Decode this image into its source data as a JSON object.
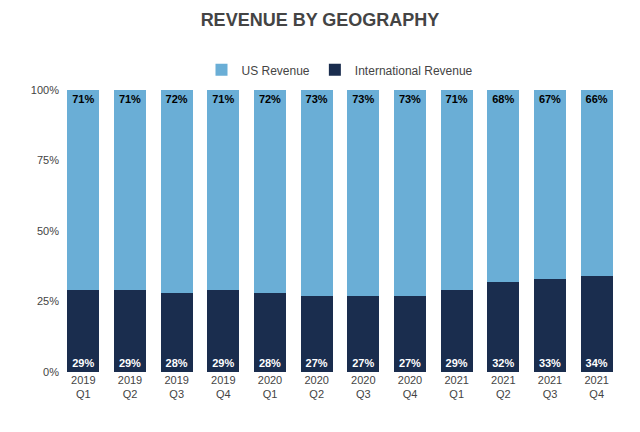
{
  "chart_data": {
    "type": "bar",
    "title": "REVENUE BY GEOGRAPHY",
    "categories": [
      "2019\nQ1",
      "2019\nQ2",
      "2019\nQ3",
      "2019\nQ4",
      "2020\nQ1",
      "2020\nQ2",
      "2020\nQ3",
      "2020\nQ4",
      "2021\nQ1",
      "2021\nQ2",
      "2021\nQ3",
      "2021\nQ4"
    ],
    "stacked": true,
    "series": [
      {
        "name": "International Revenue",
        "color": "#1a2d4e",
        "values": [
          29,
          29,
          28,
          29,
          28,
          27,
          27,
          27,
          29,
          32,
          33,
          34
        ],
        "value_labels": [
          "29%",
          "29%",
          "28%",
          "29%",
          "28%",
          "27%",
          "27%",
          "27%",
          "29%",
          "32%",
          "33%",
          "34%"
        ]
      },
      {
        "name": "US Revenue",
        "color": "#6aaed6",
        "values": [
          71,
          71,
          72,
          71,
          72,
          73,
          73,
          73,
          71,
          68,
          67,
          66
        ],
        "value_labels": [
          "71%",
          "71%",
          "72%",
          "71%",
          "72%",
          "73%",
          "73%",
          "73%",
          "71%",
          "68%",
          "67%",
          "66%"
        ]
      }
    ],
    "data_labels": true,
    "ylim": [
      0,
      100
    ],
    "yticks": [
      {
        "value": 0,
        "label": "0%"
      },
      {
        "value": 25,
        "label": "25%"
      },
      {
        "value": 50,
        "label": "50%"
      },
      {
        "value": 75,
        "label": "75%"
      },
      {
        "value": 100,
        "label": "100%"
      }
    ],
    "grid": false,
    "legend": "top"
  }
}
